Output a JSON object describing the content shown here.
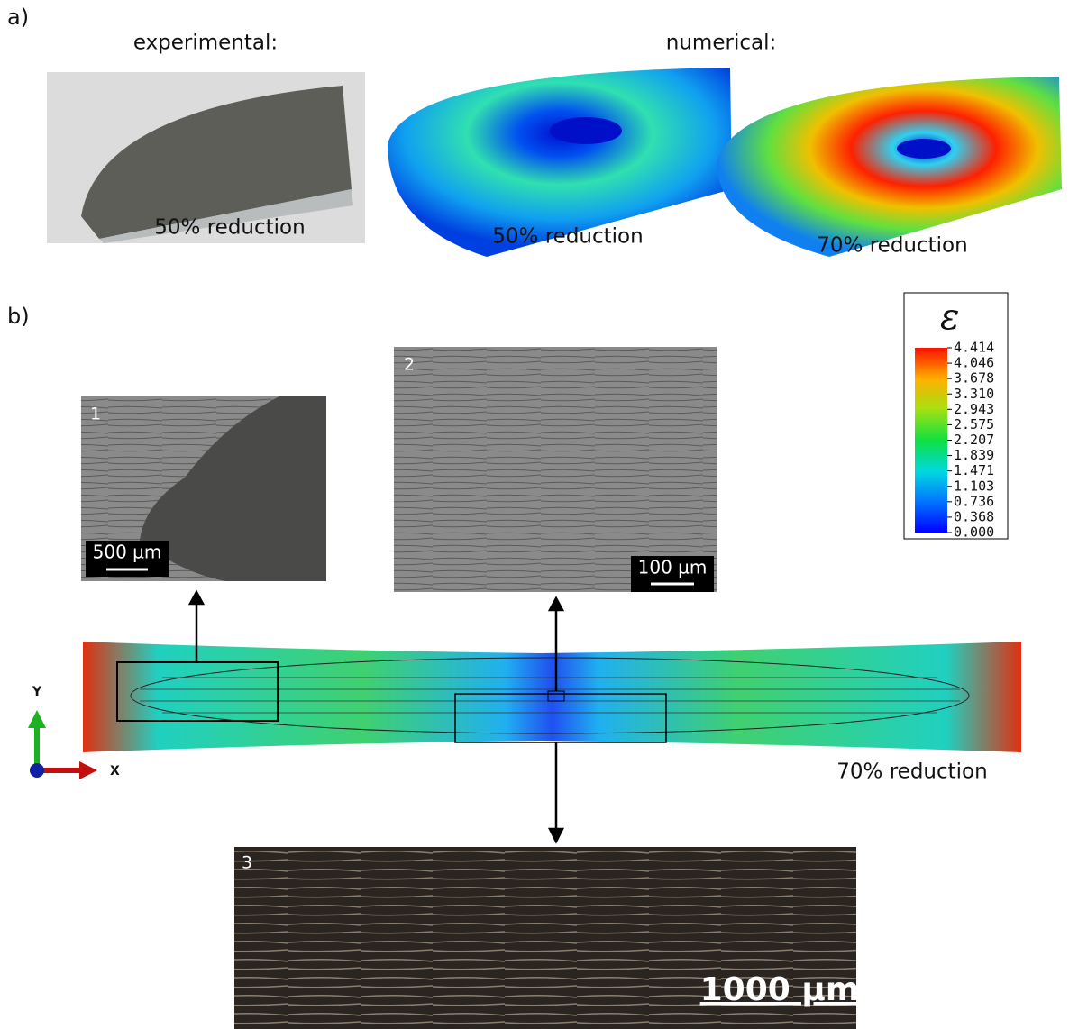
{
  "panel_a": {
    "label": "a)",
    "experimental_heading": "experimental:",
    "numerical_heading": "numerical:",
    "images": [
      {
        "caption": "50% reduction"
      },
      {
        "caption": "50% reduction"
      },
      {
        "caption": "70% reduction"
      }
    ]
  },
  "panel_b": {
    "label": "b)",
    "legend": {
      "symbol": "ε",
      "values": [
        "4.414",
        "4.046",
        "3.678",
        "3.310",
        "2.943",
        "2.575",
        "2.207",
        "1.839",
        "1.471",
        "1.103",
        "0.736",
        "0.368",
        "0.000"
      ]
    },
    "micrographs": [
      {
        "number": "1",
        "scale_bar": "500 µm"
      },
      {
        "number": "2",
        "scale_bar": "100 µm"
      },
      {
        "number": "3",
        "scale_bar": "1000 µm"
      }
    ],
    "axes": {
      "y": "Y",
      "x": "X"
    },
    "caption": "70% reduction"
  }
}
